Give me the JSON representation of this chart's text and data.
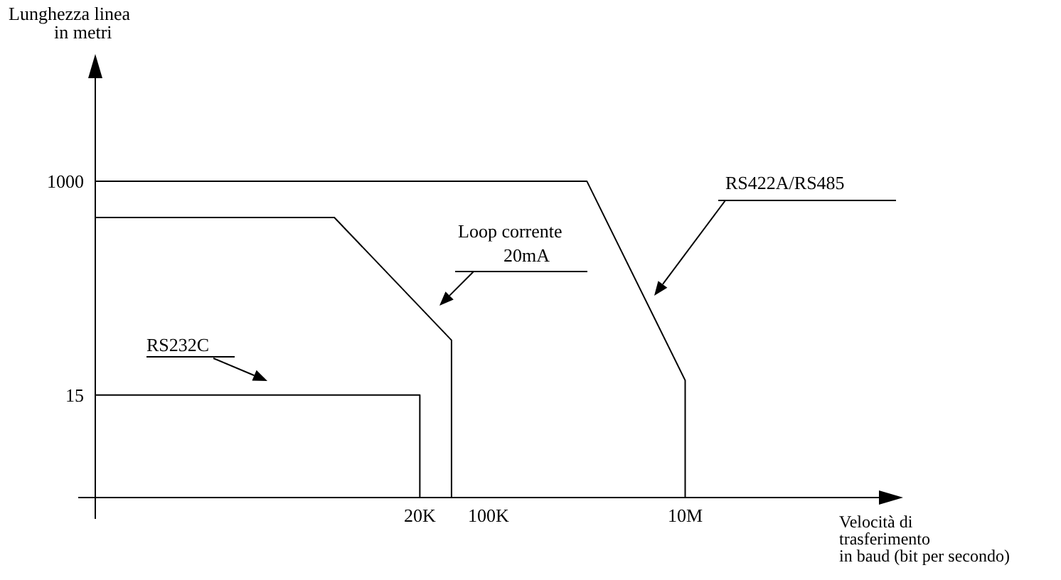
{
  "chart_data": {
    "type": "line",
    "xlabel": "Velocità di\ntrasferimento\nin baud (bit per secondo)",
    "ylabel": "Lunghezza linea\nin metri",
    "log": "xy",
    "xlim": [
      10,
      1000000000
    ],
    "ylim": [
      2,
      10000
    ],
    "xticks": [
      {
        "value": 20000,
        "label": "20K"
      },
      {
        "value": 100000,
        "label": "100K"
      },
      {
        "value": 10000000,
        "label": "10M"
      }
    ],
    "yticks": [
      15,
      1000
    ],
    "series": [
      {
        "name": "RS232C",
        "color": "#000000",
        "x": [
          10,
          20000,
          20000
        ],
        "values": [
          15,
          15,
          2
        ]
      },
      {
        "name": "Loop corrente 20mA",
        "color": "#000000",
        "x": [
          10,
          2700,
          42000,
          42000
        ],
        "values": [
          490,
          490,
          44,
          2
        ]
      },
      {
        "name": "RS422A/RS485",
        "color": "#000000",
        "x": [
          10,
          1000000,
          10000000,
          10000000
        ],
        "values": [
          1000,
          1000,
          20,
          2
        ]
      }
    ],
    "grid": false,
    "legend": false,
    "marker": "none",
    "line_style": "solid"
  }
}
